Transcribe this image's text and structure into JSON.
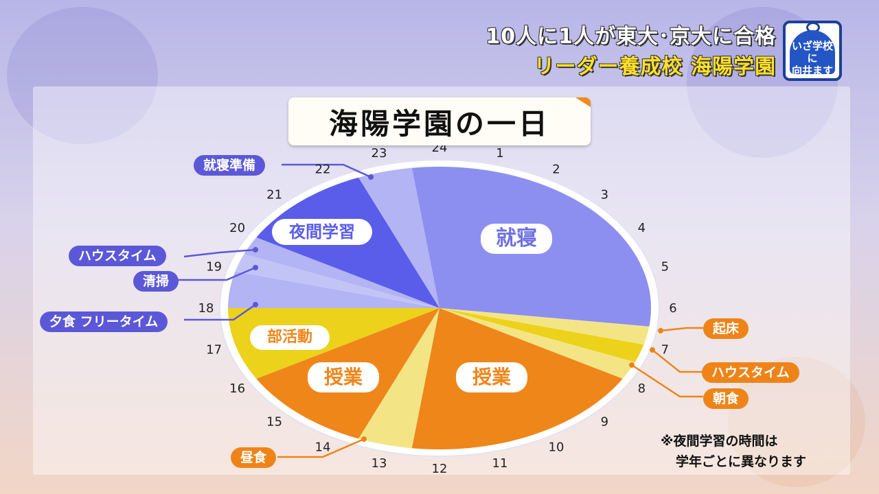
{
  "header": {
    "line1": "10人に1人が東大･京大に合格",
    "line2": "リーダー養成校 海陽学園"
  },
  "logo": {
    "text_line1": "いざ学校に",
    "text_line2": "向井ます"
  },
  "title": "海陽学園の一日",
  "colors": {
    "sleep": "#8c8ff0",
    "study_night": "#5a5cea",
    "light_blue": "#b2b4f4",
    "mid_blue": "#c3c4f6",
    "club": "#ecd21a",
    "class": "#ef861a",
    "pale_yellow": "#f3e586",
    "pill_blue": "#5b58d8",
    "pill_orange": "#ee8418"
  },
  "chart_data": {
    "type": "pie",
    "title": "海陽学園の一日",
    "unit": "hour of day (24h clock)",
    "segments": [
      {
        "name": "就寝",
        "start": 23.5,
        "end": 6.5,
        "color": "sleep",
        "label_shown": true
      },
      {
        "name": "起床",
        "start": 6.5,
        "end": 7.0,
        "color": "pale_yellow",
        "label_shown": false
      },
      {
        "name": "ハウスタイム",
        "start": 7.0,
        "end": 7.5,
        "color": "club",
        "label_shown": false
      },
      {
        "name": "朝食",
        "start": 7.5,
        "end": 8.0,
        "color": "pale_yellow",
        "label_shown": false
      },
      {
        "name": "授業",
        "start": 8.0,
        "end": 12.5,
        "color": "class",
        "label_shown": true
      },
      {
        "name": "昼食",
        "start": 12.5,
        "end": 13.5,
        "color": "pale_yellow",
        "label_shown": false
      },
      {
        "name": "授業",
        "start": 13.5,
        "end": 16.0,
        "color": "class",
        "label_shown": true
      },
      {
        "name": "部活動",
        "start": 16.0,
        "end": 18.0,
        "color": "club",
        "label_shown": true
      },
      {
        "name": "夕食 フリータイム",
        "start": 18.0,
        "end": 19.0,
        "color": "light_blue",
        "label_shown": false
      },
      {
        "name": "清掃",
        "start": 19.0,
        "end": 19.5,
        "color": "mid_blue",
        "label_shown": false
      },
      {
        "name": "ハウスタイム",
        "start": 19.5,
        "end": 20.0,
        "color": "light_blue",
        "label_shown": false
      },
      {
        "name": "夜間学習",
        "start": 20.0,
        "end": 22.5,
        "color": "study_night",
        "label_shown": true
      },
      {
        "name": "就寝準備",
        "start": 22.5,
        "end": 23.5,
        "color": "light_blue",
        "label_shown": false
      }
    ],
    "hour_ticks": [
      "24",
      "1",
      "2",
      "3",
      "4",
      "5",
      "6",
      "7",
      "8",
      "9",
      "10",
      "11",
      "12",
      "13",
      "14",
      "15",
      "16",
      "17",
      "18",
      "19",
      "20",
      "21",
      "22",
      "23"
    ]
  },
  "callouts": {
    "shushin_junbi": "就寝準備",
    "house_time_evening": "ハウスタイム",
    "seisou": "清掃",
    "yuushoku": "夕食 フリータイム",
    "kishou": "起床",
    "house_time_morning": "ハウスタイム",
    "choushoku": "朝食",
    "chuushoku": "昼食"
  },
  "segment_labels": {
    "shushin": "就寝",
    "yakan": "夜間学習",
    "bukatsu": "部活動",
    "jugyou_left": "授業",
    "jugyou_right": "授業"
  },
  "note": {
    "line1": "※夜間学習の時間は",
    "line2": "学年ごとに異なります"
  }
}
